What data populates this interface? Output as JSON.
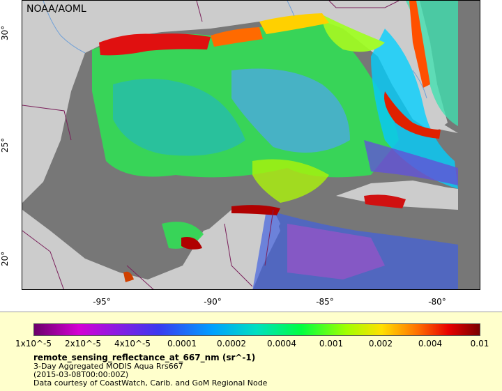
{
  "credit": "NOAA/AOML",
  "map": {
    "lat_labels": [
      "30°",
      "25°",
      "20°"
    ],
    "lon_labels": [
      "-95°",
      "-90°",
      "-85°",
      "-80°"
    ],
    "colors": {
      "land": "#cccccc",
      "no_data": "#777777",
      "border": "#7a1f5a",
      "river": "#6fa0d8"
    }
  },
  "legend": {
    "colorbar_labels": [
      "1x10^-5",
      "2x10^-5",
      "4x10^-5",
      "0.0001",
      "0.0002",
      "0.0004",
      "0.001",
      "0.002",
      "0.004",
      "0.01"
    ],
    "variable": "remote_sensing_reflectance_at_667_nm (sr^-1)",
    "product": "3-Day Aggregated MODIS Aqua Rrs667",
    "date": "(2015-03-08T00:00:00Z)",
    "courtesy": "Data courtesy of CoastWatch, Carib. and GoM Regional Node"
  }
}
